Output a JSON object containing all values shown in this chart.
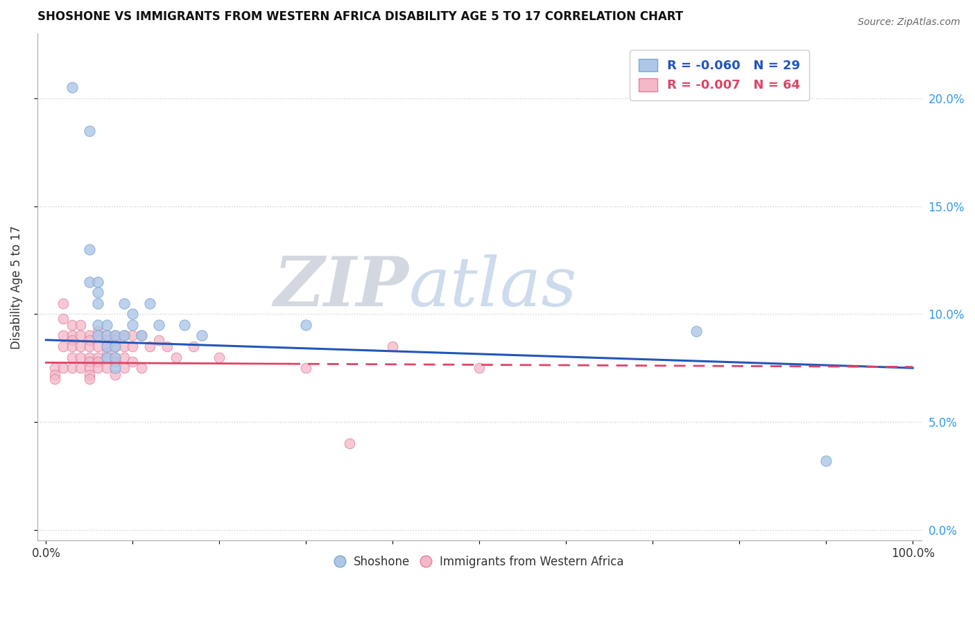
{
  "title": "SHOSHONE VS IMMIGRANTS FROM WESTERN AFRICA DISABILITY AGE 5 TO 17 CORRELATION CHART",
  "source": "Source: ZipAtlas.com",
  "ylabel": "Disability Age 5 to 17",
  "watermark_zip": "ZIP",
  "watermark_atlas": "atlas",
  "shoshone_color": "#aec6e8",
  "shoshone_edge": "#7aaad0",
  "immigrants_color": "#f4b8c8",
  "immigrants_edge": "#e080a0",
  "line_blue": "#2255bb",
  "line_pink": "#dd4466",
  "shoshone_x": [
    3,
    5,
    5,
    5,
    6,
    6,
    6,
    6,
    6,
    7,
    7,
    7,
    7,
    8,
    8,
    8,
    8,
    9,
    9,
    10,
    10,
    11,
    12,
    13,
    16,
    18,
    30,
    75,
    90
  ],
  "shoshone_y": [
    20.5,
    18.5,
    13.0,
    11.5,
    11.5,
    11.0,
    10.5,
    9.5,
    9.0,
    9.5,
    9.0,
    8.5,
    8.0,
    9.0,
    8.5,
    8.0,
    7.5,
    10.5,
    9.0,
    10.0,
    9.5,
    9.0,
    10.5,
    9.5,
    9.5,
    9.0,
    9.5,
    9.2,
    3.2
  ],
  "immigrants_x": [
    1,
    1,
    1,
    2,
    2,
    2,
    2,
    2,
    3,
    3,
    3,
    3,
    3,
    3,
    4,
    4,
    4,
    4,
    4,
    5,
    5,
    5,
    5,
    5,
    5,
    5,
    5,
    6,
    6,
    6,
    6,
    6,
    6,
    7,
    7,
    7,
    7,
    7,
    7,
    8,
    8,
    8,
    8,
    8,
    8,
    9,
    9,
    9,
    9,
    10,
    10,
    10,
    11,
    11,
    12,
    13,
    14,
    15,
    17,
    20,
    30,
    35,
    40,
    50
  ],
  "immigrants_y": [
    7.5,
    7.2,
    7.0,
    10.5,
    9.8,
    9.0,
    8.5,
    7.5,
    9.5,
    9.0,
    8.8,
    8.5,
    8.0,
    7.5,
    9.5,
    9.0,
    8.5,
    8.0,
    7.5,
    9.0,
    8.8,
    8.5,
    8.0,
    7.8,
    7.5,
    7.2,
    7.0,
    9.2,
    9.0,
    8.5,
    8.0,
    7.8,
    7.5,
    9.0,
    8.8,
    8.5,
    8.2,
    8.0,
    7.5,
    9.0,
    8.8,
    8.5,
    8.0,
    7.8,
    7.2,
    9.0,
    8.5,
    8.0,
    7.5,
    9.0,
    8.5,
    7.8,
    9.0,
    7.5,
    8.5,
    8.8,
    8.5,
    8.0,
    8.5,
    8.0,
    7.5,
    4.0,
    8.5,
    7.5
  ],
  "xlim": [
    -1,
    101
  ],
  "ylim": [
    -0.5,
    23
  ],
  "yticks": [
    0,
    5,
    10,
    15,
    20
  ],
  "ytick_labels_right": [
    "0.0%",
    "5.0%",
    "10.0%",
    "15.0%",
    "20.0%"
  ],
  "xticks": [
    0,
    10,
    20,
    30,
    40,
    50,
    60,
    70,
    80,
    90,
    100
  ],
  "xtick_labels": [
    "0.0%",
    "",
    "",
    "",
    "",
    "",
    "",
    "",
    "",
    "",
    "100.0%"
  ]
}
